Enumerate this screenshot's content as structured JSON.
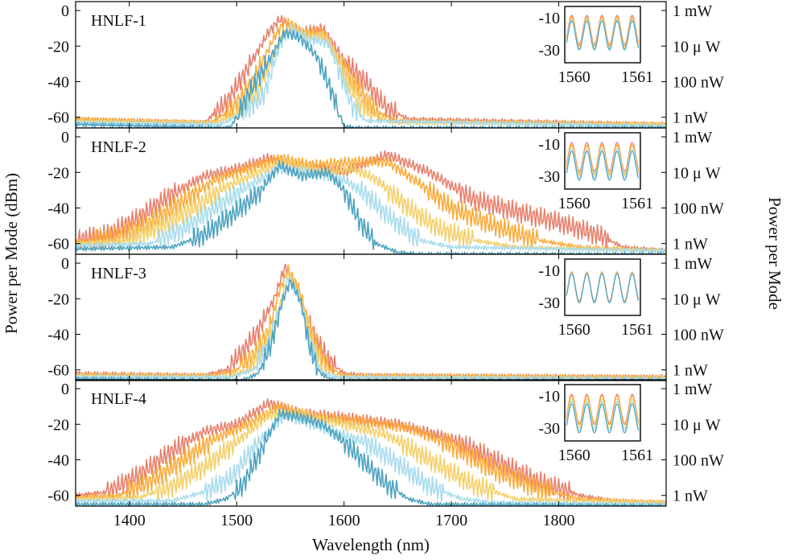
{
  "figure": {
    "xlabel": "Wavelength (nm)",
    "ylabel_left": "Power per Mode (dBm)",
    "ylabel_right": "Power per Mode"
  },
  "colors": {
    "series": [
      "#e8806e",
      "#fbab3a",
      "#f4d06a",
      "#a8dced",
      "#4ea3c0"
    ],
    "axis": "#000000"
  },
  "chart_data": {
    "type": "line",
    "x_range": [
      1350,
      1900
    ],
    "y_range": [
      -66,
      5
    ],
    "x_ticks": [
      1400,
      1500,
      1600,
      1700,
      1800
    ],
    "y_ticks_left": [
      0,
      -20,
      -40,
      -60
    ],
    "y_ticks_right": [
      {
        "value": 0,
        "label": "1 mW"
      },
      {
        "value": -20,
        "label": "10 μ W"
      },
      {
        "value": -40,
        "label": "100 nW"
      },
      {
        "value": -60,
        "label": "1 nW"
      }
    ],
    "inset": {
      "x_range": [
        1559.85,
        1561.05
      ],
      "y_range": [
        -38,
        -3
      ],
      "x_ticks": [
        1560,
        1561
      ],
      "y_ticks": [
        -10,
        -30
      ]
    },
    "panels": [
      {
        "name": "HNLF-1",
        "series": [
          {
            "x": [
              1350,
              1470,
              1490,
              1510,
              1530,
              1540,
              1560,
              1580,
              1600,
              1620,
              1640,
              1660,
              1900
            ],
            "y": [
              -61,
              -63,
              -52,
              -33,
              -12,
              -5,
              -12,
              -10,
              -28,
              -40,
              -55,
              -61,
              -64
            ]
          },
          {
            "x": [
              1350,
              1475,
              1495,
              1515,
              1535,
              1545,
              1560,
              1580,
              1598,
              1615,
              1630,
              1650,
              1900
            ],
            "y": [
              -61,
              -63,
              -56,
              -40,
              -15,
              -6,
              -13,
              -12,
              -30,
              -45,
              -57,
              -62,
              -64
            ]
          },
          {
            "x": [
              1350,
              1480,
              1500,
              1520,
              1540,
              1550,
              1565,
              1585,
              1600,
              1612,
              1625,
              1645,
              1900
            ],
            "y": [
              -62,
              -63,
              -58,
              -45,
              -18,
              -8,
              -14,
              -15,
              -35,
              -50,
              -58,
              -63,
              -64
            ]
          },
          {
            "x": [
              1350,
              1485,
              1505,
              1525,
              1540,
              1550,
              1565,
              1585,
              1598,
              1608,
              1620,
              1900
            ],
            "y": [
              -63,
              -64,
              -58,
              -48,
              -20,
              -10,
              -16,
              -18,
              -38,
              -54,
              -62,
              -65
            ]
          },
          {
            "x": [
              1350,
              1490,
              1495,
              1510,
              1530,
              1545,
              1560,
              1575,
              1590,
              1600,
              1610,
              1900
            ],
            "y": [
              -64,
              -66,
              -65,
              -48,
              -28,
              -12,
              -16,
              -26,
              -48,
              -65,
              -66,
              -66
            ]
          }
        ],
        "inset_offsets": [
          -9.5,
          -10.5,
          -11.5,
          -12.5,
          -13
        ]
      },
      {
        "name": "HNLF-2",
        "series": [
          {
            "x": [
              1350,
              1380,
              1410,
              1440,
              1470,
              1500,
              1530,
              1560,
              1600,
              1640,
              1680,
              1720,
              1760,
              1800,
              1840,
              1860,
              1900
            ],
            "y": [
              -58,
              -55,
              -45,
              -32,
              -22,
              -18,
              -12,
              -16,
              -20,
              -10,
              -20,
              -35,
              -42,
              -48,
              -56,
              -62,
              -64
            ]
          },
          {
            "x": [
              1350,
              1390,
              1420,
              1450,
              1480,
              1510,
              1540,
              1570,
              1610,
              1640,
              1670,
              1700,
              1740,
              1780,
              1820,
              1900
            ],
            "y": [
              -59,
              -56,
              -48,
              -36,
              -24,
              -18,
              -12,
              -16,
              -14,
              -14,
              -26,
              -40,
              -50,
              -58,
              -62,
              -64
            ]
          },
          {
            "x": [
              1350,
              1400,
              1430,
              1460,
              1490,
              1520,
              1545,
              1580,
              1610,
              1630,
              1660,
              1690,
              1720,
              1760,
              1900
            ],
            "y": [
              -60,
              -58,
              -50,
              -40,
              -28,
              -20,
              -14,
              -20,
              -18,
              -24,
              -40,
              -52,
              -58,
              -62,
              -64
            ]
          },
          {
            "x": [
              1350,
              1420,
              1450,
              1480,
              1510,
              1540,
              1570,
              1600,
              1620,
              1640,
              1670,
              1700,
              1900
            ],
            "y": [
              -61,
              -60,
              -52,
              -40,
              -28,
              -18,
              -20,
              -24,
              -32,
              -44,
              -58,
              -62,
              -64
            ]
          },
          {
            "x": [
              1350,
              1440,
              1470,
              1500,
              1520,
              1540,
              1560,
              1585,
              1600,
              1615,
              1630,
              1650,
              1670,
              1900
            ],
            "y": [
              -63,
              -62,
              -55,
              -42,
              -32,
              -16,
              -22,
              -20,
              -30,
              -48,
              -60,
              -65,
              -66,
              -66
            ]
          }
        ],
        "inset_offsets": [
          -10,
          -11.5,
          -12.5,
          -14,
          -15.5
        ]
      },
      {
        "name": "HNLF-3",
        "series": [
          {
            "x": [
              1350,
              1470,
              1490,
              1505,
              1520,
              1535,
              1545,
              1555,
              1570,
              1585,
              1600,
              1620,
              1900
            ],
            "y": [
              -62,
              -63,
              -60,
              -50,
              -38,
              -20,
              -2,
              -12,
              -38,
              -54,
              -62,
              -63,
              -64
            ]
          },
          {
            "x": [
              1350,
              1480,
              1500,
              1515,
              1530,
              1540,
              1548,
              1558,
              1570,
              1582,
              1598,
              1900
            ],
            "y": [
              -63,
              -63,
              -60,
              -52,
              -38,
              -15,
              -4,
              -14,
              -40,
              -56,
              -63,
              -64
            ]
          },
          {
            "x": [
              1350,
              1490,
              1510,
              1525,
              1538,
              1548,
              1558,
              1570,
              1580,
              1595,
              1900
            ],
            "y": [
              -63,
              -64,
              -60,
              -48,
              -30,
              -6,
              -16,
              -42,
              -58,
              -64,
              -65
            ]
          },
          {
            "x": [
              1350,
              1495,
              1515,
              1528,
              1540,
              1548,
              1558,
              1568,
              1578,
              1590,
              1900
            ],
            "y": [
              -64,
              -64,
              -60,
              -48,
              -28,
              -8,
              -18,
              -44,
              -60,
              -64,
              -65
            ]
          },
          {
            "x": [
              1350,
              1505,
              1520,
              1532,
              1542,
              1550,
              1560,
              1568,
              1578,
              1590,
              1900
            ],
            "y": [
              -65,
              -66,
              -62,
              -46,
              -22,
              -10,
              -22,
              -48,
              -62,
              -66,
              -66
            ]
          }
        ],
        "inset_offsets": [
          -12,
          -12.3,
          -12.6,
          -12.9,
          -13.2
        ]
      },
      {
        "name": "HNLF-4",
        "series": [
          {
            "x": [
              1350,
              1380,
              1410,
              1440,
              1470,
              1500,
              1530,
              1560,
              1600,
              1650,
              1700,
              1740,
              1780,
              1820,
              1850,
              1880,
              1900
            ],
            "y": [
              -60,
              -58,
              -48,
              -35,
              -24,
              -20,
              -8,
              -14,
              -16,
              -20,
              -28,
              -40,
              -52,
              -60,
              -63,
              -64,
              -64
            ]
          },
          {
            "x": [
              1350,
              1390,
              1420,
              1450,
              1480,
              1510,
              1540,
              1570,
              1610,
              1660,
              1700,
              1740,
              1780,
              1820,
              1900
            ],
            "y": [
              -61,
              -60,
              -52,
              -40,
              -28,
              -20,
              -10,
              -16,
              -18,
              -22,
              -32,
              -46,
              -56,
              -62,
              -64
            ]
          },
          {
            "x": [
              1350,
              1410,
              1440,
              1470,
              1500,
              1530,
              1560,
              1600,
              1640,
              1680,
              1720,
              1760,
              1900
            ],
            "y": [
              -62,
              -61,
              -55,
              -44,
              -30,
              -15,
              -14,
              -20,
              -26,
              -40,
              -54,
              -62,
              -64
            ]
          },
          {
            "x": [
              1350,
              1440,
              1470,
              1495,
              1520,
              1545,
              1580,
              1620,
              1650,
              1680,
              1710,
              1740,
              1900
            ],
            "y": [
              -63,
              -63,
              -58,
              -50,
              -30,
              -15,
              -22,
              -30,
              -42,
              -55,
              -62,
              -64,
              -65
            ]
          },
          {
            "x": [
              1350,
              1470,
              1490,
              1505,
              1520,
              1540,
              1560,
              1580,
              1600,
              1620,
              1640,
              1660,
              1680,
              1900
            ],
            "y": [
              -65,
              -65,
              -62,
              -55,
              -38,
              -14,
              -16,
              -20,
              -30,
              -42,
              -54,
              -62,
              -65,
              -66
            ]
          }
        ],
        "inset_offsets": [
          -10,
          -11,
          -13,
          -14.5,
          -16
        ]
      }
    ]
  }
}
